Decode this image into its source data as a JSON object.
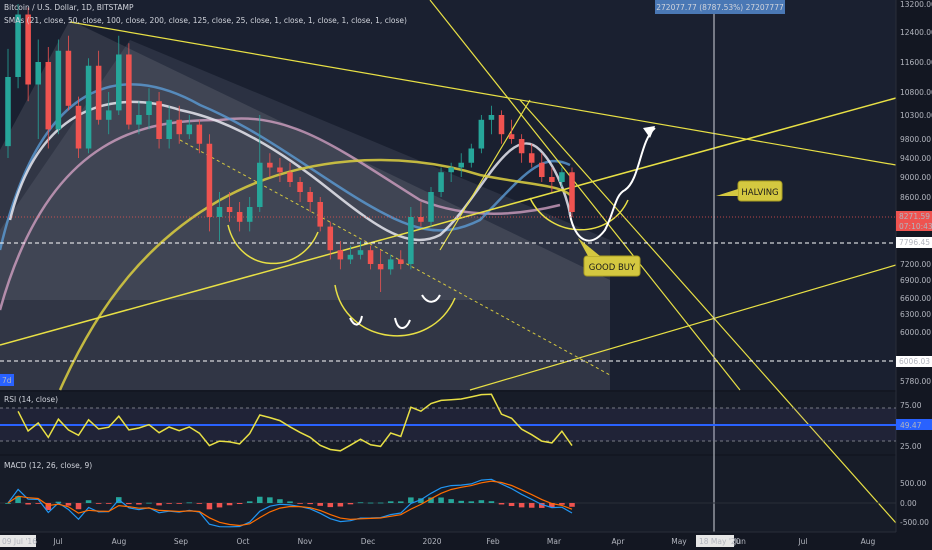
{
  "chart_data": {
    "type": "candlestick",
    "header": {
      "symbol": "Bitcoin / U.S. Dollar, 1D, BITSTAMP",
      "indicator": "SMAs (21, close, 50, close, 100, close, 200, close, 125, close, 25, close, 1, close, 1, close, 1, close, 1, close)"
    },
    "price_axis": {
      "ticks": [
        "13200.00",
        "12400.00",
        "11600.00",
        "10800.00",
        "10300.00",
        "9800.00",
        "9400.00",
        "9000.00",
        "8600.00",
        "8200.00",
        "7700.00",
        "7200.00",
        "6900.00",
        "6600.00",
        "6300.00",
        "6000.00",
        "5780.00"
      ]
    },
    "time_axis": {
      "ticks": [
        "Jul",
        "Aug",
        "Sep",
        "Oct",
        "Nov",
        "Dec",
        "2020",
        "Feb",
        "Mar",
        "Apr",
        "May",
        "Jun",
        "Jul",
        "Aug"
      ],
      "start_label": "09 Jul '16",
      "cursor_label": "18 May '20"
    },
    "price_badges": {
      "last": "8271.59",
      "countdown": "07:10:43",
      "dashed_upper": "7796.45",
      "dashed_lower": "6006.03",
      "left_tag": "7d"
    },
    "measure_label": "272077.77 (8787.53%) 27207777",
    "annotations": [
      "HALVING",
      "GOOD BUY"
    ],
    "candles": [
      {
        "o": 9650,
        "h": 11950,
        "l": 9400,
        "c": 11200
      },
      {
        "o": 11200,
        "h": 13200,
        "l": 10900,
        "c": 12900
      },
      {
        "o": 12900,
        "h": 13100,
        "l": 10600,
        "c": 11000
      },
      {
        "o": 11000,
        "h": 12200,
        "l": 9800,
        "c": 11600
      },
      {
        "o": 11600,
        "h": 12000,
        "l": 9600,
        "c": 10000
      },
      {
        "o": 10000,
        "h": 12200,
        "l": 9900,
        "c": 11900
      },
      {
        "o": 11900,
        "h": 12300,
        "l": 10400,
        "c": 10500
      },
      {
        "o": 10500,
        "h": 10700,
        "l": 9400,
        "c": 9600
      },
      {
        "o": 9600,
        "h": 11700,
        "l": 9500,
        "c": 11500
      },
      {
        "o": 11500,
        "h": 11900,
        "l": 10100,
        "c": 10200
      },
      {
        "o": 10200,
        "h": 10800,
        "l": 9900,
        "c": 10400
      },
      {
        "o": 10400,
        "h": 12300,
        "l": 10300,
        "c": 11800
      },
      {
        "o": 11800,
        "h": 12100,
        "l": 10000,
        "c": 10100
      },
      {
        "o": 10100,
        "h": 10600,
        "l": 9900,
        "c": 10300
      },
      {
        "o": 10300,
        "h": 10900,
        "l": 10000,
        "c": 10600
      },
      {
        "o": 10600,
        "h": 10800,
        "l": 9600,
        "c": 9800
      },
      {
        "o": 9800,
        "h": 10500,
        "l": 9600,
        "c": 10200
      },
      {
        "o": 10200,
        "h": 10500,
        "l": 9700,
        "c": 9900
      },
      {
        "o": 9900,
        "h": 10300,
        "l": 9800,
        "c": 10100
      },
      {
        "o": 10100,
        "h": 10200,
        "l": 9500,
        "c": 9700
      },
      {
        "o": 9700,
        "h": 9900,
        "l": 7900,
        "c": 8200
      },
      {
        "o": 8200,
        "h": 8700,
        "l": 7700,
        "c": 8400
      },
      {
        "o": 8400,
        "h": 8700,
        "l": 8100,
        "c": 8300
      },
      {
        "o": 8300,
        "h": 8500,
        "l": 7900,
        "c": 8100
      },
      {
        "o": 8100,
        "h": 8600,
        "l": 7900,
        "c": 8400
      },
      {
        "o": 8400,
        "h": 10300,
        "l": 8300,
        "c": 9300
      },
      {
        "o": 9300,
        "h": 9500,
        "l": 9000,
        "c": 9200
      },
      {
        "o": 9200,
        "h": 9400,
        "l": 8900,
        "c": 9100
      },
      {
        "o": 9100,
        "h": 9300,
        "l": 8800,
        "c": 8900
      },
      {
        "o": 8900,
        "h": 9000,
        "l": 8500,
        "c": 8700
      },
      {
        "o": 8700,
        "h": 8800,
        "l": 8300,
        "c": 8500
      },
      {
        "o": 8500,
        "h": 8600,
        "l": 7900,
        "c": 8000
      },
      {
        "o": 8000,
        "h": 8100,
        "l": 7300,
        "c": 7500
      },
      {
        "o": 7500,
        "h": 7700,
        "l": 7100,
        "c": 7300
      },
      {
        "o": 7300,
        "h": 7600,
        "l": 7200,
        "c": 7400
      },
      {
        "o": 7400,
        "h": 7700,
        "l": 7300,
        "c": 7500
      },
      {
        "o": 7500,
        "h": 7600,
        "l": 7100,
        "c": 7200
      },
      {
        "o": 7200,
        "h": 7500,
        "l": 6700,
        "c": 7100
      },
      {
        "o": 7100,
        "h": 7400,
        "l": 7000,
        "c": 7300
      },
      {
        "o": 7300,
        "h": 7500,
        "l": 7100,
        "c": 7200
      },
      {
        "o": 7200,
        "h": 8400,
        "l": 7100,
        "c": 8200
      },
      {
        "o": 8200,
        "h": 8500,
        "l": 8000,
        "c": 8100
      },
      {
        "o": 8100,
        "h": 8800,
        "l": 8000,
        "c": 8700
      },
      {
        "o": 8700,
        "h": 9200,
        "l": 8600,
        "c": 9100
      },
      {
        "o": 9100,
        "h": 9300,
        "l": 8900,
        "c": 9200
      },
      {
        "o": 9200,
        "h": 9500,
        "l": 9000,
        "c": 9300
      },
      {
        "o": 9300,
        "h": 9700,
        "l": 9200,
        "c": 9600
      },
      {
        "o": 9600,
        "h": 10300,
        "l": 9500,
        "c": 10200
      },
      {
        "o": 10200,
        "h": 10500,
        "l": 9900,
        "c": 10300
      },
      {
        "o": 10300,
        "h": 10400,
        "l": 9700,
        "c": 9900
      },
      {
        "o": 9900,
        "h": 10200,
        "l": 9700,
        "c": 9800
      },
      {
        "o": 9800,
        "h": 9900,
        "l": 9300,
        "c": 9500
      },
      {
        "o": 9500,
        "h": 9700,
        "l": 9200,
        "c": 9300
      },
      {
        "o": 9300,
        "h": 9500,
        "l": 8900,
        "c": 9000
      },
      {
        "o": 9000,
        "h": 9200,
        "l": 8700,
        "c": 8900
      },
      {
        "o": 8900,
        "h": 9200,
        "l": 8800,
        "c": 9100
      },
      {
        "o": 9100,
        "h": 9200,
        "l": 8200,
        "c": 8300
      }
    ],
    "rsi": {
      "label": "RSI (14, close)",
      "ticks": [
        "75.00",
        "25.00"
      ],
      "current": "49.47"
    },
    "macd": {
      "label": "MACD (12, 26, close, 9)",
      "ticks": [
        "500.00",
        "0.00",
        "-500.00"
      ]
    }
  }
}
